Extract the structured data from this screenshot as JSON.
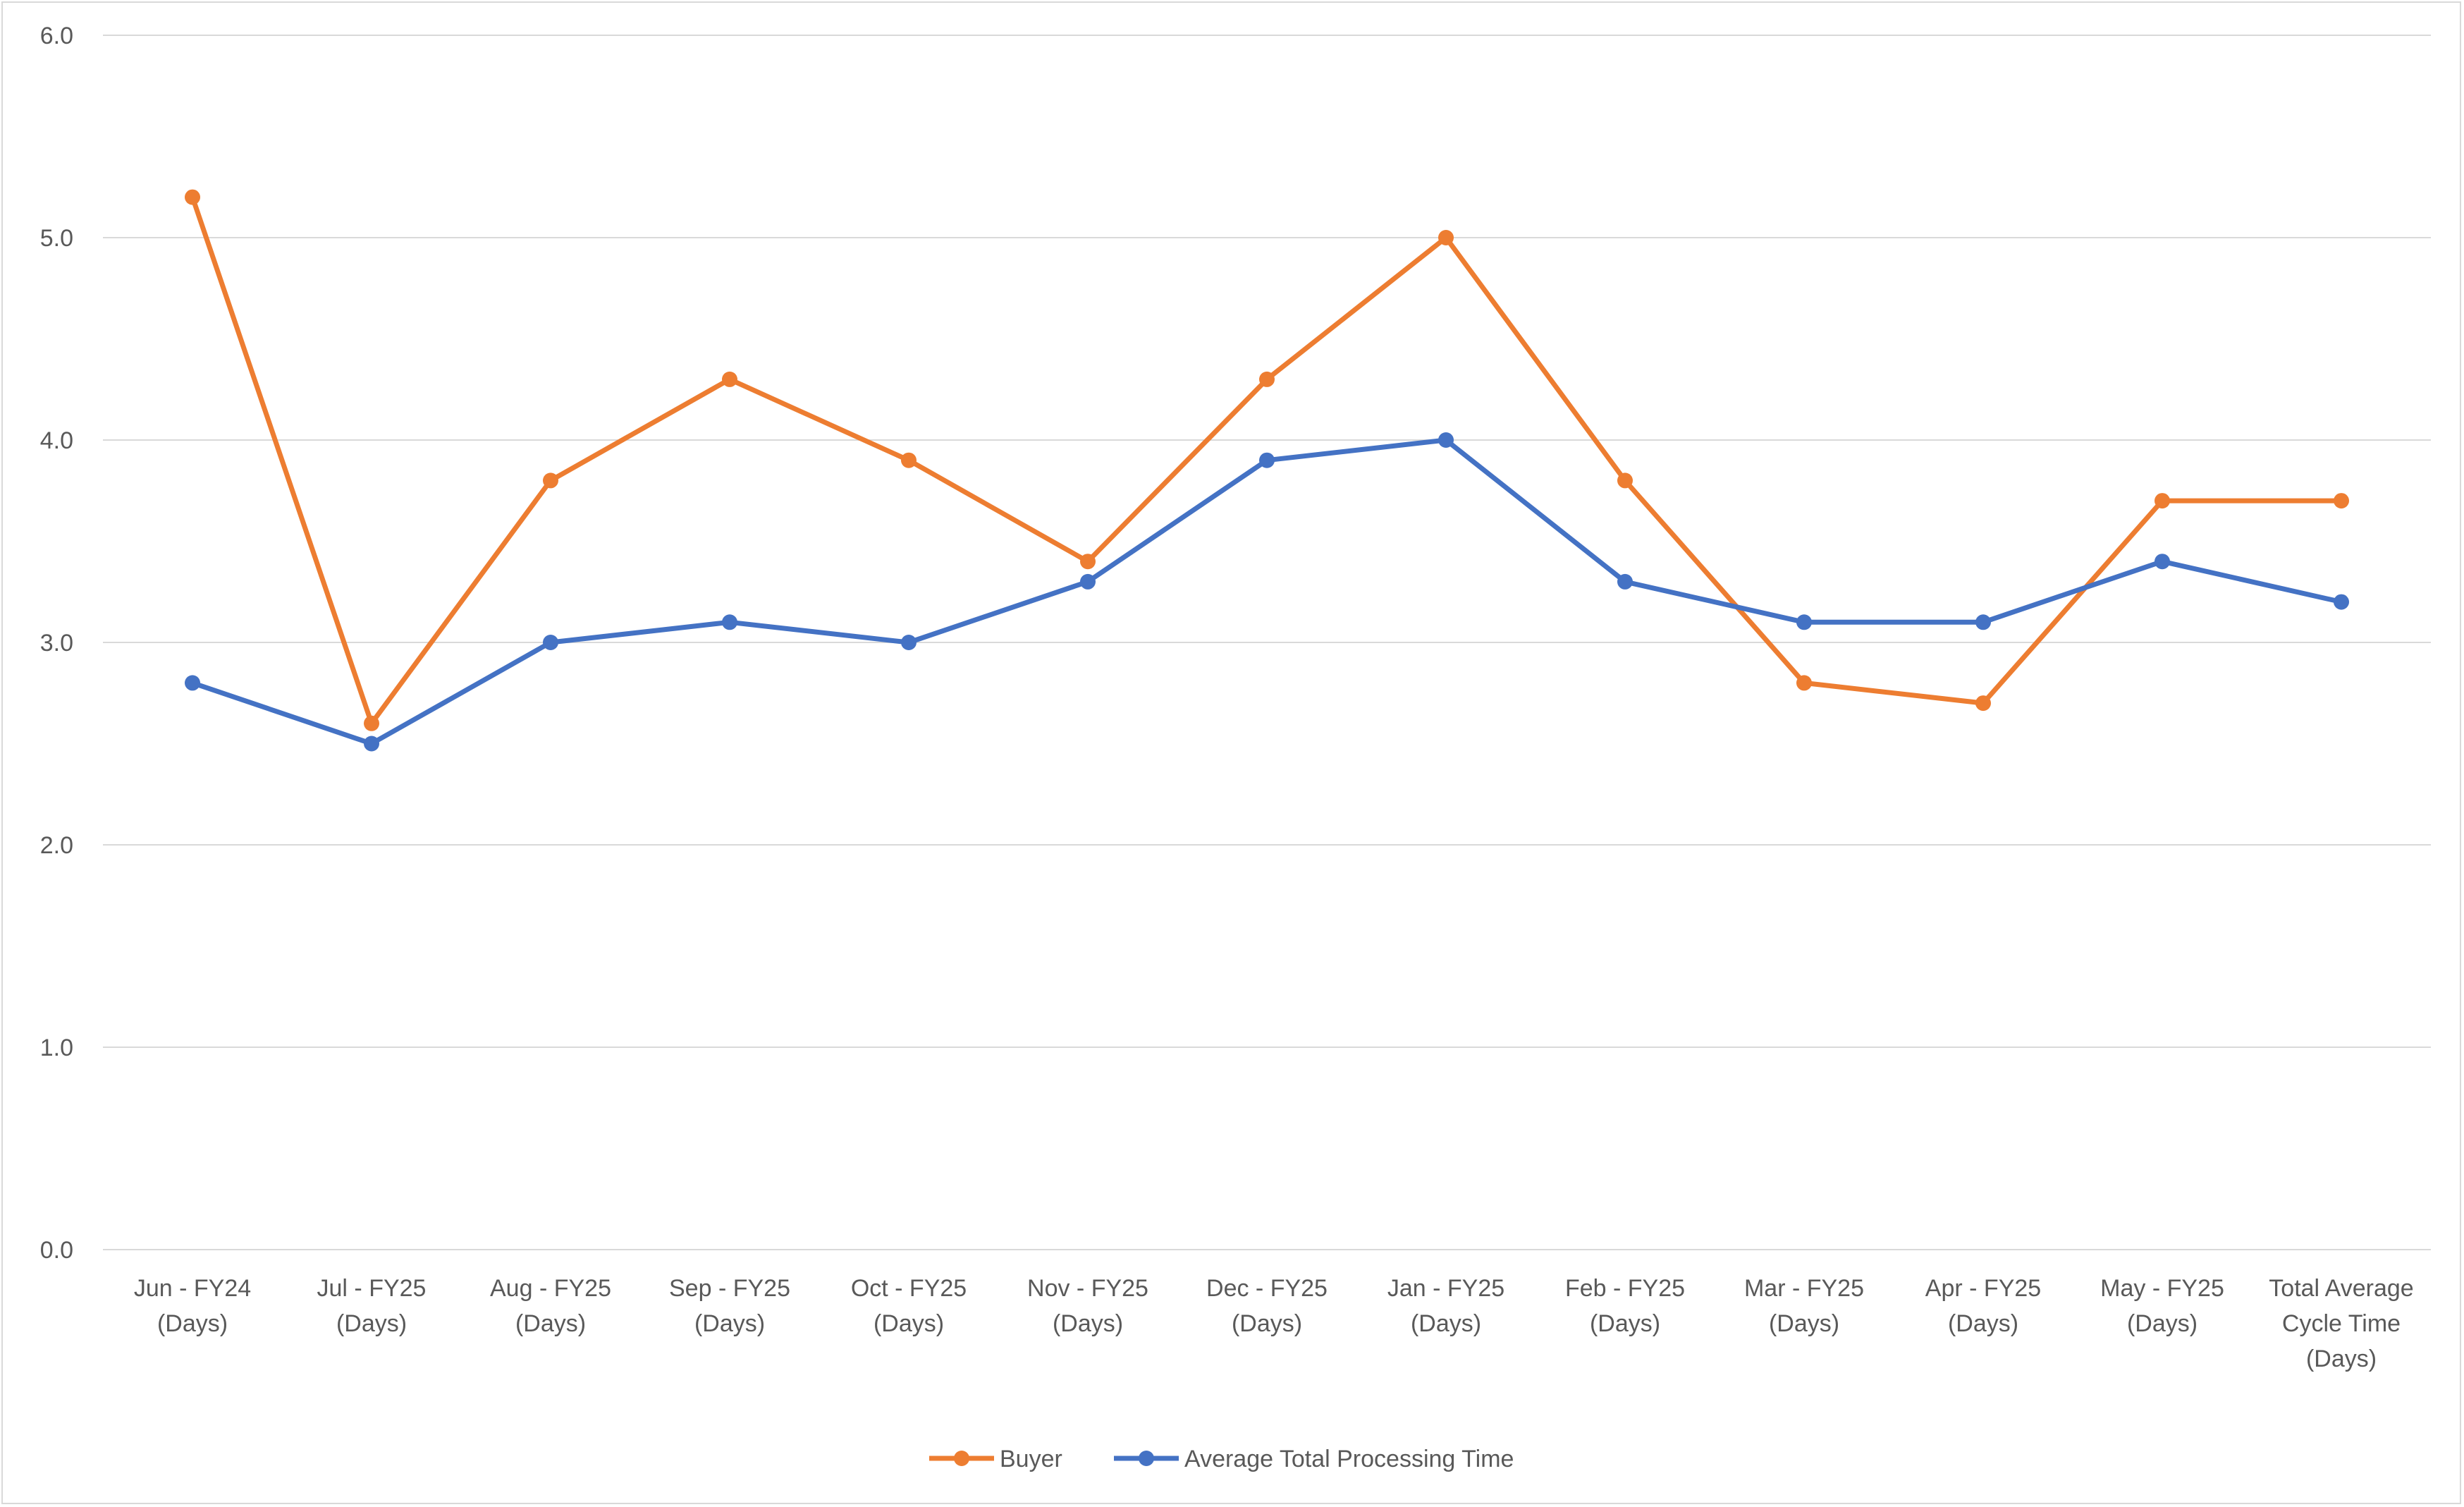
{
  "chart_data": {
    "type": "line",
    "title": "",
    "xlabel": "",
    "ylabel": "",
    "ylim": [
      0,
      6
    ],
    "yticks": [
      "0.0",
      "1.0",
      "2.0",
      "3.0",
      "4.0",
      "5.0",
      "6.0"
    ],
    "grid": true,
    "legend_position": "bottom",
    "categories": [
      [
        "Jun - FY24",
        "(Days)"
      ],
      [
        "Jul - FY25",
        "(Days)"
      ],
      [
        "Aug - FY25",
        "(Days)"
      ],
      [
        "Sep - FY25",
        "(Days)"
      ],
      [
        "Oct - FY25",
        "(Days)"
      ],
      [
        "Nov - FY25",
        "(Days)"
      ],
      [
        "Dec - FY25",
        "(Days)"
      ],
      [
        "Jan - FY25",
        "(Days)"
      ],
      [
        "Feb - FY25",
        "(Days)"
      ],
      [
        "Mar - FY25",
        "(Days)"
      ],
      [
        "Apr - FY25",
        "(Days)"
      ],
      [
        "May - FY25",
        "(Days)"
      ],
      [
        "Total Average",
        "Cycle Time",
        "(Days)"
      ]
    ],
    "series": [
      {
        "name": "Buyer",
        "color": "#ED7D31",
        "values": [
          5.2,
          2.6,
          3.8,
          4.3,
          3.9,
          3.4,
          4.3,
          5.0,
          3.8,
          2.8,
          2.7,
          3.7,
          3.7
        ]
      },
      {
        "name": "Average Total Processing Time",
        "color": "#4472C4",
        "values": [
          2.8,
          2.5,
          3.0,
          3.1,
          3.0,
          3.3,
          3.9,
          4.0,
          3.3,
          3.1,
          3.1,
          3.4,
          3.2
        ]
      }
    ]
  }
}
